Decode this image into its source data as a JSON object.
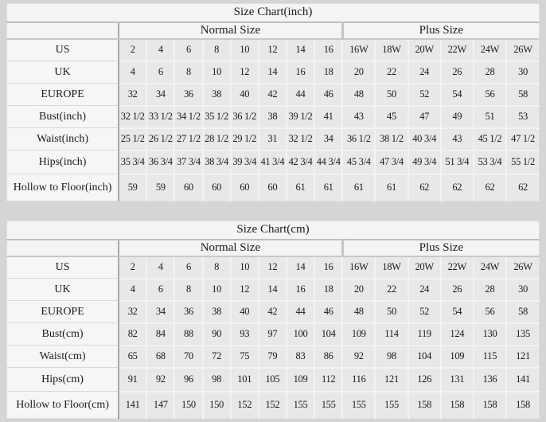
{
  "colors": {
    "page_background": "#d5d5d3",
    "panel_background": "#f5f5f3",
    "data_cell_background": "#e9e8e6",
    "divider_gray": "#a8a7a5",
    "text": "#1b1b1b"
  },
  "chart_data": [
    {
      "type": "table",
      "title": "Size Chart(inch)",
      "column_groups": [
        {
          "label": "Normal Size",
          "span": 8
        },
        {
          "label": "Plus Size",
          "span": 6
        }
      ],
      "rows": [
        {
          "label": "US",
          "values": [
            "2",
            "4",
            "6",
            "8",
            "10",
            "12",
            "14",
            "16",
            "16W",
            "18W",
            "20W",
            "22W",
            "24W",
            "26W"
          ]
        },
        {
          "label": "UK",
          "values": [
            "4",
            "6",
            "8",
            "10",
            "12",
            "14",
            "16",
            "18",
            "20",
            "22",
            "24",
            "26",
            "28",
            "30"
          ]
        },
        {
          "label": "EUROPE",
          "values": [
            "32",
            "34",
            "36",
            "38",
            "40",
            "42",
            "44",
            "46",
            "48",
            "50",
            "52",
            "54",
            "56",
            "58"
          ]
        },
        {
          "label": "Bust(inch)",
          "values": [
            "32 1/2",
            "33 1/2",
            "34 1/2",
            "35 1/2",
            "36 1/2",
            "38",
            "39 1/2",
            "41",
            "43",
            "45",
            "47",
            "49",
            "51",
            "53"
          ]
        },
        {
          "label": "Waist(inch)",
          "values": [
            "25 1/2",
            "26 1/2",
            "27 1/2",
            "28 1/2",
            "29 1/2",
            "31",
            "32 1/2",
            "34",
            "36 1/2",
            "38 1/2",
            "40 3/4",
            "43",
            "45 1/2",
            "47 1/2"
          ]
        },
        {
          "label": "Hips(inch)",
          "values": [
            "35 3/4",
            "36 3/4",
            "37 3/4",
            "38 3/4",
            "39 3/4",
            "41 3/4",
            "42 3/4",
            "44 3/4",
            "45 3/4",
            "47 3/4",
            "49 3/4",
            "51 3/4",
            "53 3/4",
            "55 1/2"
          ]
        },
        {
          "label": "Hollow to Floor(inch)",
          "values": [
            "59",
            "59",
            "60",
            "60",
            "60",
            "60",
            "61",
            "61",
            "61",
            "61",
            "62",
            "62",
            "62",
            "62"
          ]
        }
      ]
    },
    {
      "type": "table",
      "title": "Size Chart(cm)",
      "column_groups": [
        {
          "label": "Normal Size",
          "span": 8
        },
        {
          "label": "Plus Size",
          "span": 6
        }
      ],
      "rows": [
        {
          "label": "US",
          "values": [
            "2",
            "4",
            "6",
            "8",
            "10",
            "12",
            "14",
            "16",
            "16W",
            "18W",
            "20W",
            "22W",
            "24W",
            "26W"
          ]
        },
        {
          "label": "UK",
          "values": [
            "4",
            "6",
            "8",
            "10",
            "12",
            "14",
            "16",
            "18",
            "20",
            "22",
            "24",
            "26",
            "28",
            "30"
          ]
        },
        {
          "label": "EUROPE",
          "values": [
            "32",
            "34",
            "36",
            "38",
            "40",
            "42",
            "44",
            "46",
            "48",
            "50",
            "52",
            "54",
            "56",
            "58"
          ]
        },
        {
          "label": "Bust(cm)",
          "values": [
            "82",
            "84",
            "88",
            "90",
            "93",
            "97",
            "100",
            "104",
            "109",
            "114",
            "119",
            "124",
            "130",
            "135"
          ]
        },
        {
          "label": "Waist(cm)",
          "values": [
            "65",
            "68",
            "70",
            "72",
            "75",
            "79",
            "83",
            "86",
            "92",
            "98",
            "104",
            "109",
            "115",
            "121"
          ]
        },
        {
          "label": "Hips(cm)",
          "values": [
            "91",
            "92",
            "96",
            "98",
            "101",
            "105",
            "109",
            "112",
            "116",
            "121",
            "126",
            "131",
            "136",
            "141"
          ]
        },
        {
          "label": "Hollow to Floor(cm)",
          "values": [
            "141",
            "147",
            "150",
            "150",
            "152",
            "152",
            "155",
            "155",
            "155",
            "155",
            "158",
            "158",
            "158",
            "158"
          ]
        }
      ]
    }
  ]
}
